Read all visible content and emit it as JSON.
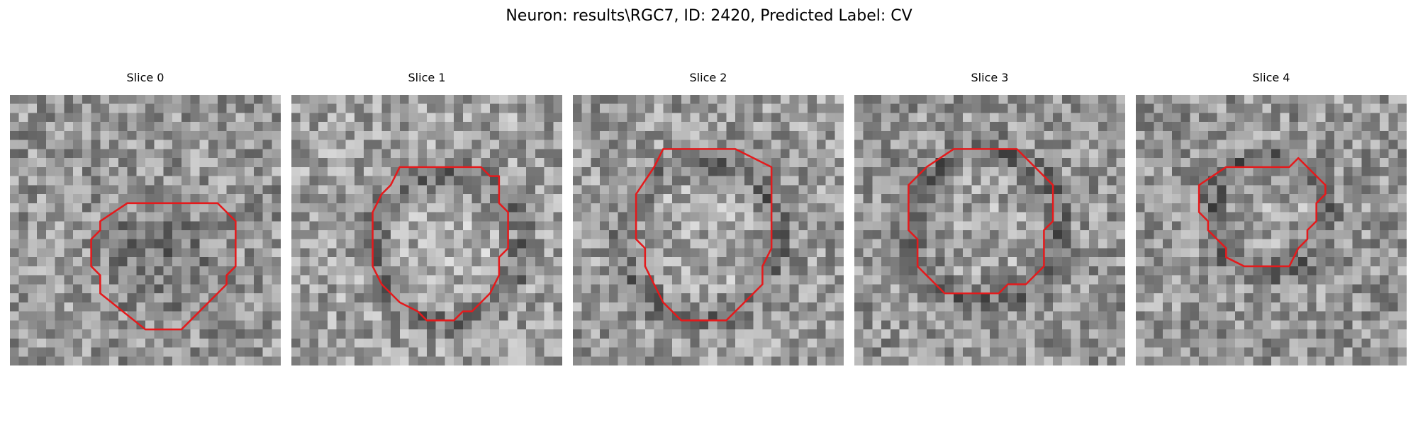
{
  "figure": {
    "title": "Neuron: results\\RGC7, ID: 2420, Predicted Label: CV",
    "outline_color": "#e41a1c",
    "colormap": "grayscale"
  },
  "panels": [
    {
      "title": "Slice 0",
      "seed": 11,
      "mean": 150,
      "dark_center": true,
      "outline": [
        [
          13,
          12
        ],
        [
          23,
          12
        ],
        [
          24,
          13
        ],
        [
          25,
          14
        ],
        [
          25,
          19
        ],
        [
          24,
          20
        ],
        [
          24,
          21
        ],
        [
          19,
          26
        ],
        [
          15,
          26
        ],
        [
          10,
          22
        ],
        [
          10,
          20
        ],
        [
          9,
          19
        ],
        [
          9,
          16
        ],
        [
          10,
          15
        ],
        [
          10,
          14
        ]
      ]
    },
    {
      "title": "Slice 1",
      "seed": 23,
      "mean": 160,
      "dark_center": false,
      "outline": [
        [
          12,
          8
        ],
        [
          21,
          8
        ],
        [
          22,
          9
        ],
        [
          23,
          9
        ],
        [
          23,
          12
        ],
        [
          24,
          13
        ],
        [
          24,
          17
        ],
        [
          23,
          18
        ],
        [
          23,
          20
        ],
        [
          22,
          22
        ],
        [
          20,
          24
        ],
        [
          19,
          24
        ],
        [
          18,
          25
        ],
        [
          15,
          25
        ],
        [
          14,
          24
        ],
        [
          12,
          23
        ],
        [
          10,
          21
        ],
        [
          9,
          19
        ],
        [
          9,
          13
        ],
        [
          10,
          11
        ],
        [
          11,
          10
        ]
      ]
    },
    {
      "title": "Slice 2",
      "seed": 37,
      "mean": 155,
      "dark_center": false,
      "outline": [
        [
          10,
          6
        ],
        [
          18,
          6
        ],
        [
          20,
          7
        ],
        [
          22,
          8
        ],
        [
          22,
          17
        ],
        [
          21,
          19
        ],
        [
          21,
          21
        ],
        [
          19,
          23
        ],
        [
          17,
          25
        ],
        [
          12,
          25
        ],
        [
          10,
          23
        ],
        [
          9,
          21
        ],
        [
          8,
          19
        ],
        [
          8,
          17
        ],
        [
          7,
          16
        ],
        [
          7,
          11
        ],
        [
          9,
          8
        ]
      ]
    },
    {
      "title": "Slice 3",
      "seed": 53,
      "mean": 150,
      "dark_center": false,
      "outline": [
        [
          11,
          6
        ],
        [
          18,
          6
        ],
        [
          20,
          8
        ],
        [
          21,
          9
        ],
        [
          22,
          10
        ],
        [
          22,
          14
        ],
        [
          21,
          15
        ],
        [
          21,
          19
        ],
        [
          19,
          21
        ],
        [
          17,
          21
        ],
        [
          16,
          22
        ],
        [
          10,
          22
        ],
        [
          8,
          20
        ],
        [
          7,
          19
        ],
        [
          7,
          16
        ],
        [
          6,
          15
        ],
        [
          6,
          10
        ],
        [
          8,
          8
        ]
      ]
    },
    {
      "title": "Slice 4",
      "seed": 71,
      "mean": 150,
      "dark_center": false,
      "outline": [
        [
          10,
          8
        ],
        [
          17,
          8
        ],
        [
          18,
          7
        ],
        [
          19,
          8
        ],
        [
          20,
          9
        ],
        [
          21,
          10
        ],
        [
          21,
          11
        ],
        [
          20,
          12
        ],
        [
          20,
          14
        ],
        [
          19,
          15
        ],
        [
          19,
          16
        ],
        [
          18,
          17
        ],
        [
          17,
          19
        ],
        [
          12,
          19
        ],
        [
          10,
          18
        ],
        [
          10,
          17
        ],
        [
          9,
          16
        ],
        [
          8,
          15
        ],
        [
          8,
          14
        ],
        [
          7,
          13
        ],
        [
          7,
          10
        ]
      ]
    }
  ]
}
